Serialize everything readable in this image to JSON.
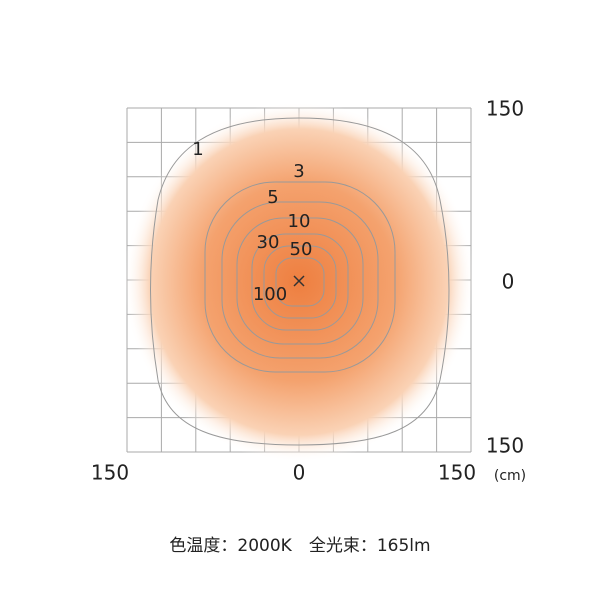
{
  "axes": {
    "x_ticks": [
      "150",
      "0",
      "150"
    ],
    "unit": "(cm)",
    "y_ticks": [
      "150",
      "0",
      "150"
    ]
  },
  "contours": [
    "1",
    "3",
    "5",
    "10",
    "30",
    "50",
    "100"
  ],
  "caption": "色温度：2000K　全光束：165lm"
}
